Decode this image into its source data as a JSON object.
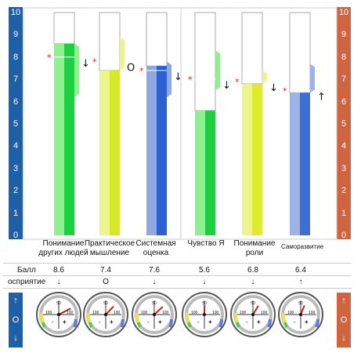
{
  "scale": {
    "ticks": [
      "0",
      "1",
      "2",
      "3",
      "4",
      "5",
      "6",
      "7",
      "8",
      "9",
      "10"
    ],
    "left_color": "#1e5fa6",
    "right_color": "#cf6440"
  },
  "chart_data": {
    "type": "bar",
    "ylim": [
      0,
      10
    ],
    "categories": [
      "Понимание других людей",
      "Практическое мышление",
      "Системная оценка",
      "Чувство Я",
      "Понимание роли",
      "Саморазвитие"
    ],
    "values": [
      8.6,
      7.4,
      7.6,
      5.6,
      6.8,
      6.4
    ],
    "markers": [
      8.0,
      7.8,
      7.4,
      7.0,
      6.9,
      6.5
    ],
    "range_low": [
      6.2,
      7.4,
      6.2,
      6.5,
      6.8,
      6.4
    ],
    "range_high": [
      8.6,
      8.9,
      7.8,
      8.3,
      7.4,
      7.7
    ],
    "colors_dark": [
      "#1fcf3f",
      "#d6e82a",
      "#2c5fcf",
      "#1fcf3f",
      "#dfec2c",
      "#3a6fd4"
    ],
    "colors_light": [
      "#8ef08f",
      "#eaf58e",
      "#8fa8df",
      "#8ef08f",
      "#eaf58e",
      "#9db3e6"
    ],
    "perception": [
      "↓",
      "O",
      "↓",
      "↓",
      "↓",
      "↑"
    ],
    "gauge_labels": {
      "top": "50",
      "left": "100",
      "right": "100",
      "minus": "-",
      "plus": "+"
    }
  },
  "labels": {
    "col0": [
      "Понимание",
      "других людей"
    ],
    "col1": [
      "Практическое",
      "мышление"
    ],
    "col2": [
      "Системная",
      "оценка"
    ],
    "col3": [
      "Чувство Я"
    ],
    "col4": [
      "Понимание",
      "роли"
    ],
    "col5": [
      "Саморазвитие"
    ]
  },
  "rows": {
    "score_label": "Балл",
    "perception_label": "осприятие",
    "scores": [
      "8.6",
      "7.4",
      "7.6",
      "5.6",
      "6.8",
      "6.4"
    ]
  },
  "side_symbols": [
    "↑",
    "O",
    "↓"
  ]
}
